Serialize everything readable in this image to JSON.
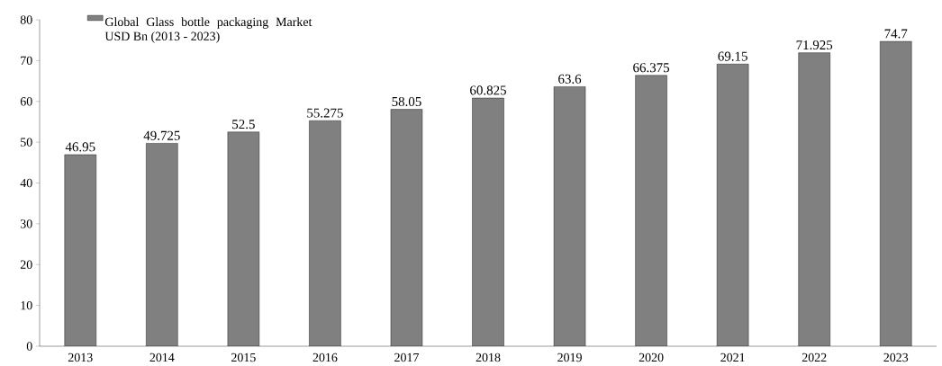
{
  "chart_data": {
    "type": "bar",
    "categories": [
      "2013",
      "2014",
      "2015",
      "2016",
      "2017",
      "2018",
      "2019",
      "2020",
      "2021",
      "2022",
      "2023"
    ],
    "series": [
      {
        "name": "Global Glass bottle packaging Market USD Bn (2013 - 2023)",
        "color": "#808080",
        "values": [
          46.95,
          49.725,
          52.5,
          55.275,
          58.05,
          60.825,
          63.6,
          66.375,
          69.15,
          71.925,
          74.7
        ]
      }
    ],
    "ylim": [
      0,
      80
    ],
    "yticks": [
      0,
      10,
      20,
      30,
      40,
      50,
      60,
      70,
      80
    ],
    "data_labels": true,
    "legend": "top left",
    "grid": false
  }
}
